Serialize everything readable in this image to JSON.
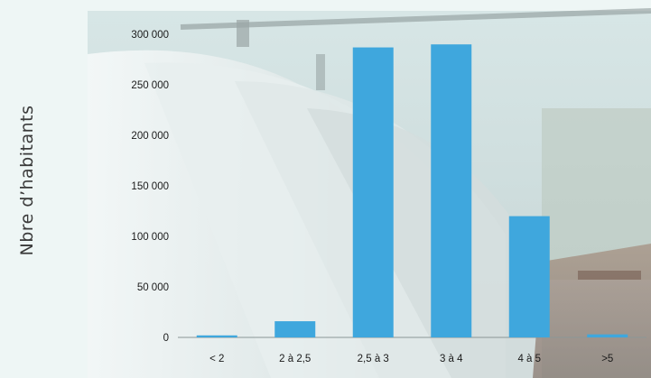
{
  "chart_data": {
    "type": "bar",
    "categories": [
      "< 2",
      "2 à 2,5",
      "2,5 à  3",
      "3  à  4",
      "4 à 5",
      ">5"
    ],
    "values": [
      2000,
      16000,
      287000,
      290000,
      120000,
      3000
    ],
    "title": "",
    "xlabel": "",
    "ylabel": "Nbre d’habitants",
    "ylim": [
      0,
      300000
    ],
    "yticks": [
      0,
      50000,
      100000,
      150000,
      200000,
      250000,
      300000
    ],
    "ytick_labels": [
      "0",
      "50 000",
      "100 000",
      "150 000",
      "200 000",
      "250 000",
      "300 000"
    ],
    "bar_color": "#3fa7dd",
    "grid": false,
    "background": "photograph of large pipelines (decorative)"
  }
}
